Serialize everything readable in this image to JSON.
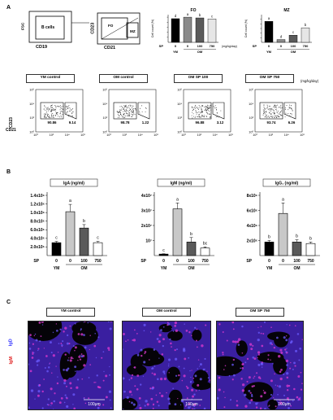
{
  "panel_letters": {
    "a": "A",
    "b": "B",
    "c": "C"
  },
  "gating": {
    "fsc": "FSC",
    "cd19": "CD19",
    "bcells": "B cells",
    "cd23": "CD23",
    "cd21": "CD21",
    "fo": "FO",
    "mz": "MZ"
  },
  "top_charts_common": {
    "ylabel": "Cell count (%)",
    "sp_label": "SP",
    "unit": "(mg/kg/day)",
    "ym": "YM",
    "om": "OM"
  },
  "chart_data": [
    {
      "type": "bar",
      "title": "FO",
      "ylabel": "Cell count (%)",
      "categories": [
        "0",
        "0",
        "100",
        "750"
      ],
      "group_labels": [
        "YM",
        "OM"
      ],
      "x_title": "SP",
      "values": [
        94,
        100,
        97,
        93
      ],
      "sig": [
        "d",
        "a",
        "b",
        "c"
      ],
      "colors": [
        "#000000",
        "#8a8a8a",
        "#5a5a5a",
        "#e6e6e6"
      ]
    },
    {
      "type": "bar",
      "title": "MZ",
      "ylabel": "Cell count (%)",
      "categories": [
        "0",
        "0",
        "100",
        "750"
      ],
      "group_labels": [
        "YM",
        "OM"
      ],
      "x_title": "SP",
      "values": [
        9.1,
        1.2,
        3.1,
        6.3
      ],
      "sig": [
        "a",
        "d",
        "c",
        "b"
      ],
      "colors": [
        "#000000",
        "#8a8a8a",
        "#5a5a5a",
        "#e6e6e6"
      ]
    },
    {
      "type": "bar",
      "title": "IgA (ng/ml)",
      "yticks": [
        "2.0x10⁵",
        "4.0x10⁵",
        "6.0x10⁵",
        "8.0x10⁵",
        "1.0x10⁶",
        "1.2x10⁶",
        "1.4x10⁶"
      ],
      "ylim": [
        0,
        1400000
      ],
      "categories": [
        "0",
        "0",
        "100",
        "750"
      ],
      "group_labels": [
        "YM",
        "OM"
      ],
      "x_title": "SP",
      "values": [
        300000,
        1020000,
        640000,
        300000
      ],
      "errors": [
        30000,
        170000,
        80000,
        30000
      ],
      "sig": [
        "c",
        "a",
        "b",
        "c"
      ],
      "colors": [
        "#000000",
        "#c8c8c8",
        "#5a5a5a",
        "#ffffff"
      ]
    },
    {
      "type": "bar",
      "title": "IgM (ng/ml)",
      "yticks": [
        "10⁷",
        "2x10⁷",
        "3x10⁷",
        "4x10⁷"
      ],
      "ylim": [
        0,
        40000000
      ],
      "categories": [
        "0",
        "0",
        "100",
        "750"
      ],
      "group_labels": [
        "YM",
        "OM"
      ],
      "x_title": "SP",
      "values": [
        1000000,
        31000000,
        9000000,
        5000000
      ],
      "errors": [
        200000,
        4000000,
        3000000,
        800000
      ],
      "sig": [
        "c",
        "a",
        "b",
        "bc"
      ],
      "colors": [
        "#000000",
        "#c8c8c8",
        "#5a5a5a",
        "#ffffff"
      ]
    },
    {
      "type": "bar",
      "title": "IgG₁ (ng/ml)",
      "yticks": [
        "2x10⁶",
        "4x10⁶",
        "6x10⁶",
        "8x10⁶"
      ],
      "ylim": [
        0,
        8000000
      ],
      "categories": [
        "0",
        "0",
        "100",
        "750"
      ],
      "group_labels": [
        "YM",
        "OM"
      ],
      "x_title": "SP",
      "values": [
        1800000,
        5600000,
        1800000,
        1600000
      ],
      "errors": [
        200000,
        1400000,
        300000,
        200000
      ],
      "sig": [
        "b",
        "a",
        "b",
        "b"
      ],
      "colors": [
        "#000000",
        "#c8c8c8",
        "#5a5a5a",
        "#ffffff"
      ]
    }
  ],
  "flow": {
    "unit": "(mg/kg/day)",
    "cd23": "CD23",
    "cd21": "CD21",
    "ticks": [
      "10⁰",
      "10²",
      "10⁴",
      "10⁶"
    ],
    "panels": [
      {
        "title": "YM control",
        "fo": "90.86",
        "mz": "9.14"
      },
      {
        "title": "OM control",
        "fo": "98.78",
        "mz": "1.22"
      },
      {
        "title": "OM SP 100",
        "fo": "96.88",
        "mz": "3.12"
      },
      {
        "title": "OM SP 750",
        "fo": "93.74",
        "mz": "6.26"
      }
    ]
  },
  "histology": {
    "igd": "IgD",
    "igm": "IgM",
    "scale": "100μm",
    "panels": [
      {
        "title": "YM control"
      },
      {
        "title": "OM control"
      },
      {
        "title": "OM SP 750"
      }
    ]
  }
}
